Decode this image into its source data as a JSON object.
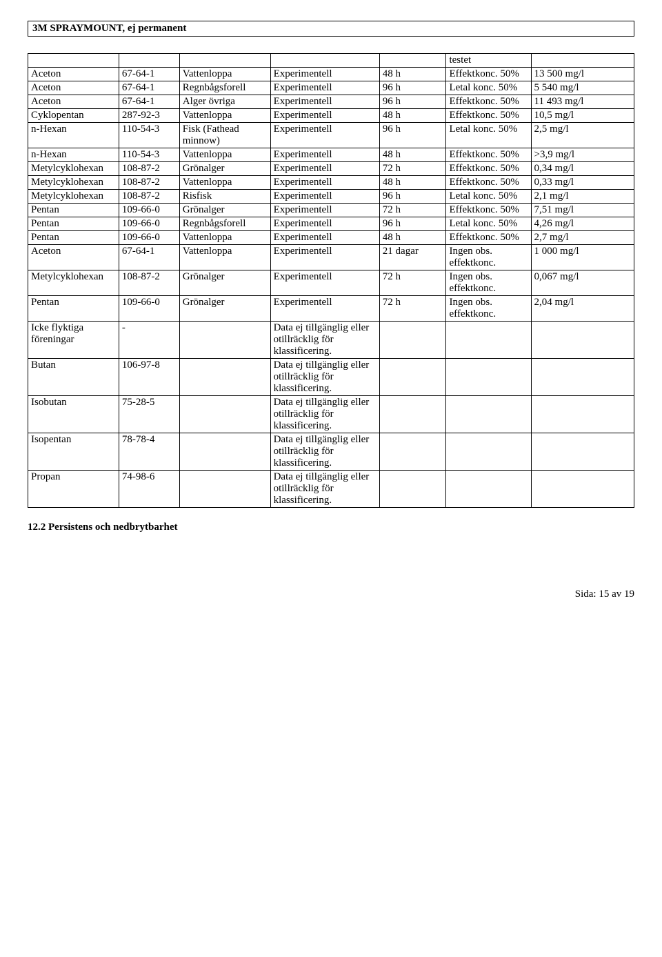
{
  "title": "3M SPRAYMOUNT, ej permanent",
  "table": {
    "rows": [
      {
        "c": [
          "",
          "",
          "",
          "",
          "",
          "testet",
          ""
        ]
      },
      {
        "c": [
          "Aceton",
          "67-64-1",
          "Vattenloppa",
          "Experimentell",
          "48 h",
          "Effektkonc. 50%",
          "13 500 mg/l"
        ]
      },
      {
        "c": [
          "Aceton",
          "67-64-1",
          "Regnbågsforell",
          "Experimentell",
          "96 h",
          "Letal konc. 50%",
          "5 540 mg/l"
        ]
      },
      {
        "c": [
          "Aceton",
          "67-64-1",
          "Alger övriga",
          "Experimentell",
          "96 h",
          "Effektkonc. 50%",
          "11 493 mg/l"
        ]
      },
      {
        "c": [
          "Cyklopentan",
          "287-92-3",
          "Vattenloppa",
          "Experimentell",
          "48 h",
          "Effektkonc. 50%",
          "10,5 mg/l"
        ]
      },
      {
        "c": [
          "n-Hexan",
          "110-54-3",
          "Fisk (Fathead minnow)",
          "Experimentell",
          "96 h",
          "Letal konc. 50%",
          "2,5 mg/l"
        ]
      },
      {
        "c": [
          "n-Hexan",
          "110-54-3",
          "Vattenloppa",
          "Experimentell",
          "48 h",
          "Effektkonc. 50%",
          ">3,9 mg/l"
        ]
      },
      {
        "c": [
          "Metylcyklohexan",
          "108-87-2",
          "Grönalger",
          "Experimentell",
          "72 h",
          "Effektkonc. 50%",
          "0,34 mg/l"
        ]
      },
      {
        "c": [
          "Metylcyklohexan",
          "108-87-2",
          "Vattenloppa",
          "Experimentell",
          "48 h",
          "Effektkonc. 50%",
          "0,33 mg/l"
        ]
      },
      {
        "c": [
          "Metylcyklohexan",
          "108-87-2",
          "Risfisk",
          "Experimentell",
          "96 h",
          "Letal konc. 50%",
          "2,1 mg/l"
        ]
      },
      {
        "c": [
          "Pentan",
          "109-66-0",
          "Grönalger",
          "Experimentell",
          "72 h",
          "Effektkonc. 50%",
          "7,51 mg/l"
        ]
      },
      {
        "c": [
          "Pentan",
          "109-66-0",
          "Regnbågsforell",
          "Experimentell",
          "96 h",
          "Letal konc. 50%",
          "4,26 mg/l"
        ]
      },
      {
        "c": [
          "Pentan",
          "109-66-0",
          "Vattenloppa",
          "Experimentell",
          "48 h",
          "Effektkonc. 50%",
          "2,7 mg/l"
        ]
      },
      {
        "c": [
          "Aceton",
          "67-64-1",
          "Vattenloppa",
          "Experimentell",
          "21 dagar",
          "Ingen obs. effektkonc.",
          "1 000 mg/l"
        ]
      },
      {
        "c": [
          "Metylcyklohexan",
          "108-87-2",
          "Grönalger",
          "Experimentell",
          "72 h",
          "Ingen obs. effektkonc.",
          "0,067 mg/l"
        ]
      },
      {
        "c": [
          "Pentan",
          "109-66-0",
          "Grönalger",
          "Experimentell",
          "72 h",
          "Ingen obs. effektkonc.",
          "2,04 mg/l"
        ]
      },
      {
        "c": [
          "Icke flyktiga föreningar",
          "-",
          "",
          "Data ej tillgänglig eller otillräcklig för klassificering.",
          "",
          "",
          ""
        ]
      },
      {
        "c": [
          "Butan",
          "106-97-8",
          "",
          "Data ej tillgänglig eller otillräcklig för klassificering.",
          "",
          "",
          ""
        ]
      },
      {
        "c": [
          "Isobutan",
          "75-28-5",
          "",
          "Data ej tillgänglig eller otillräcklig för klassificering.",
          "",
          "",
          ""
        ]
      },
      {
        "c": [
          "Isopentan",
          "78-78-4",
          "",
          "Data ej tillgänglig eller otillräcklig för klassificering.",
          "",
          "",
          ""
        ]
      },
      {
        "c": [
          "Propan",
          "74-98-6",
          "",
          "Data ej tillgänglig eller otillräcklig för klassificering.",
          "",
          "",
          ""
        ]
      }
    ]
  },
  "section_heading": "12.2 Persistens och nedbrytbarhet",
  "footer": "Sida: 15 av  19"
}
